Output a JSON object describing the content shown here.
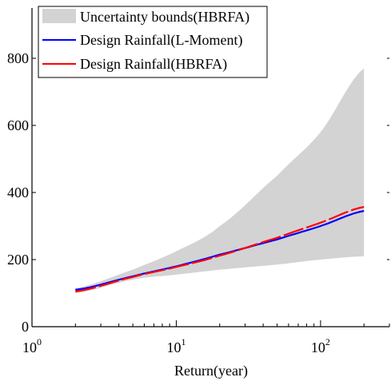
{
  "chart_data": {
    "type": "area",
    "title": "",
    "xlabel": "Return(year)",
    "ylabel": "",
    "x_scale": "log",
    "xlim": [
      1,
      300
    ],
    "ylim": [
      0,
      950
    ],
    "x_ticks": [
      {
        "value": 1,
        "base": "10",
        "exp": "0"
      },
      {
        "value": 10,
        "base": "10",
        "exp": "1"
      },
      {
        "value": 100,
        "base": "10",
        "exp": "2"
      }
    ],
    "y_ticks": [
      0,
      200,
      400,
      600,
      800
    ],
    "grid": false,
    "legend_position": "top-left",
    "series": [
      {
        "name": "Uncertainty bounds(HBRFA)",
        "kind": "band",
        "color": "#d3d3d3",
        "x": [
          2,
          5,
          10,
          20,
          50,
          100,
          200
        ],
        "lower": [
          100,
          140,
          155,
          170,
          185,
          200,
          210
        ],
        "upper": [
          115,
          170,
          225,
          300,
          450,
          580,
          770
        ]
      },
      {
        "name": "Design Rainfall(L-Moment)",
        "kind": "line",
        "color": "#0000ff",
        "x": [
          2,
          5,
          10,
          20,
          50,
          100,
          200
        ],
        "y": [
          110,
          150,
          180,
          215,
          260,
          300,
          345
        ]
      },
      {
        "name": "Design Rainfall(HBRFA)",
        "kind": "dashed-line",
        "color": "#ff0000",
        "x": [
          2,
          5,
          10,
          20,
          50,
          100,
          200
        ],
        "y": [
          105,
          148,
          178,
          212,
          265,
          310,
          357
        ]
      }
    ]
  }
}
